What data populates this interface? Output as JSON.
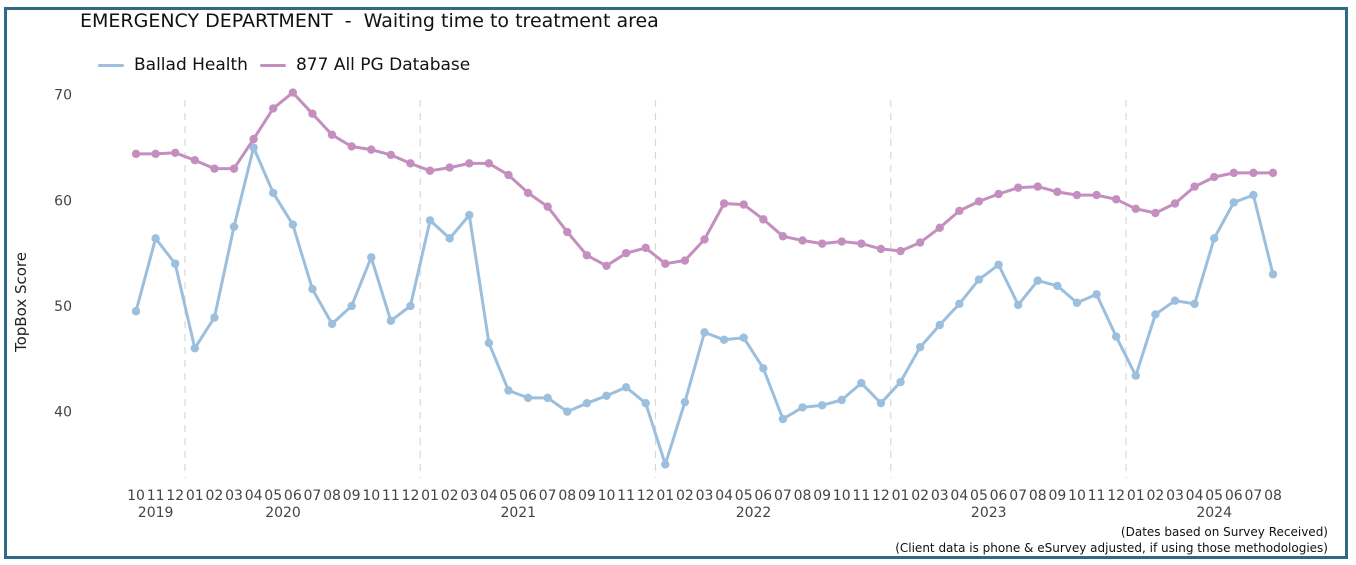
{
  "chart_data": {
    "type": "line",
    "title": "EMERGENCY DEPARTMENT  -  Waiting time to treatment area",
    "ylabel": "TopBox Score",
    "xlabel": "",
    "ylim": [
      34,
      73
    ],
    "yticks": [
      40,
      50,
      60,
      70
    ],
    "legend_position": "top-left",
    "grid": "vertical dashed year separators",
    "x_month_labels": [
      "10",
      "11",
      "12",
      "01",
      "02",
      "03",
      "04",
      "05",
      "06",
      "07",
      "08",
      "09",
      "10",
      "11",
      "12",
      "01",
      "02",
      "03",
      "04",
      "05",
      "06",
      "07",
      "08",
      "09",
      "10",
      "11",
      "12",
      "01",
      "02",
      "03",
      "04",
      "05",
      "06",
      "07",
      "08",
      "09",
      "10",
      "11",
      "12",
      "01",
      "02",
      "03",
      "04",
      "05",
      "06",
      "07",
      "08",
      "09",
      "10",
      "11",
      "12",
      "01",
      "02",
      "03",
      "04",
      "05",
      "06",
      "07",
      "08"
    ],
    "x_year_labels": [
      {
        "label": "2019",
        "at_index": 1
      },
      {
        "label": "2020",
        "at_index": 7.5
      },
      {
        "label": "2021",
        "at_index": 19.5
      },
      {
        "label": "2022",
        "at_index": 31.5
      },
      {
        "label": "2023",
        "at_index": 43.5
      },
      {
        "label": "2024",
        "at_index": 55
      }
    ],
    "year_separators_after_index": [
      2.5,
      14.5,
      26.5,
      38.5,
      50.5
    ],
    "series": [
      {
        "name": "Ballad Health",
        "color": "#9bbfdc",
        "values": [
          49.5,
          56.4,
          54.0,
          46.0,
          48.9,
          57.5,
          65.0,
          60.7,
          57.7,
          51.6,
          48.3,
          50.0,
          54.6,
          48.6,
          50.0,
          58.1,
          56.4,
          58.6,
          46.5,
          42.0,
          41.3,
          41.3,
          40.0,
          40.8,
          41.5,
          42.3,
          40.8,
          35.0,
          40.9,
          47.5,
          46.8,
          47.0,
          44.1,
          39.3,
          40.4,
          40.6,
          41.1,
          42.7,
          40.8,
          42.8,
          46.1,
          48.2,
          50.2,
          52.5,
          53.9,
          50.1,
          52.4,
          51.9,
          50.3,
          51.1,
          47.1,
          43.4,
          49.2,
          50.5,
          50.2,
          56.4,
          59.8,
          60.5,
          53.0
        ]
      },
      {
        "name": "877 All PG Database",
        "color": "#c48ebf",
        "values": [
          64.4,
          64.4,
          64.5,
          63.8,
          63.0,
          63.0,
          65.8,
          68.7,
          70.2,
          68.2,
          66.2,
          65.1,
          64.8,
          64.3,
          63.5,
          62.8,
          63.1,
          63.5,
          63.5,
          62.4,
          60.7,
          59.4,
          57.0,
          54.8,
          53.8,
          55.0,
          55.5,
          54.0,
          54.3,
          56.3,
          59.7,
          59.6,
          58.2,
          56.6,
          56.2,
          55.9,
          56.1,
          55.9,
          55.4,
          55.2,
          56.0,
          57.4,
          59.0,
          59.9,
          60.6,
          61.2,
          61.3,
          60.8,
          60.5,
          60.5,
          60.1,
          59.2,
          58.8,
          59.7,
          61.3,
          62.2,
          62.6,
          62.6,
          62.6
        ]
      }
    ]
  },
  "notes": {
    "line1": "(Dates based on Survey Received)",
    "line2": "(Client data is phone & eSurvey adjusted, if using those methodologies)"
  }
}
